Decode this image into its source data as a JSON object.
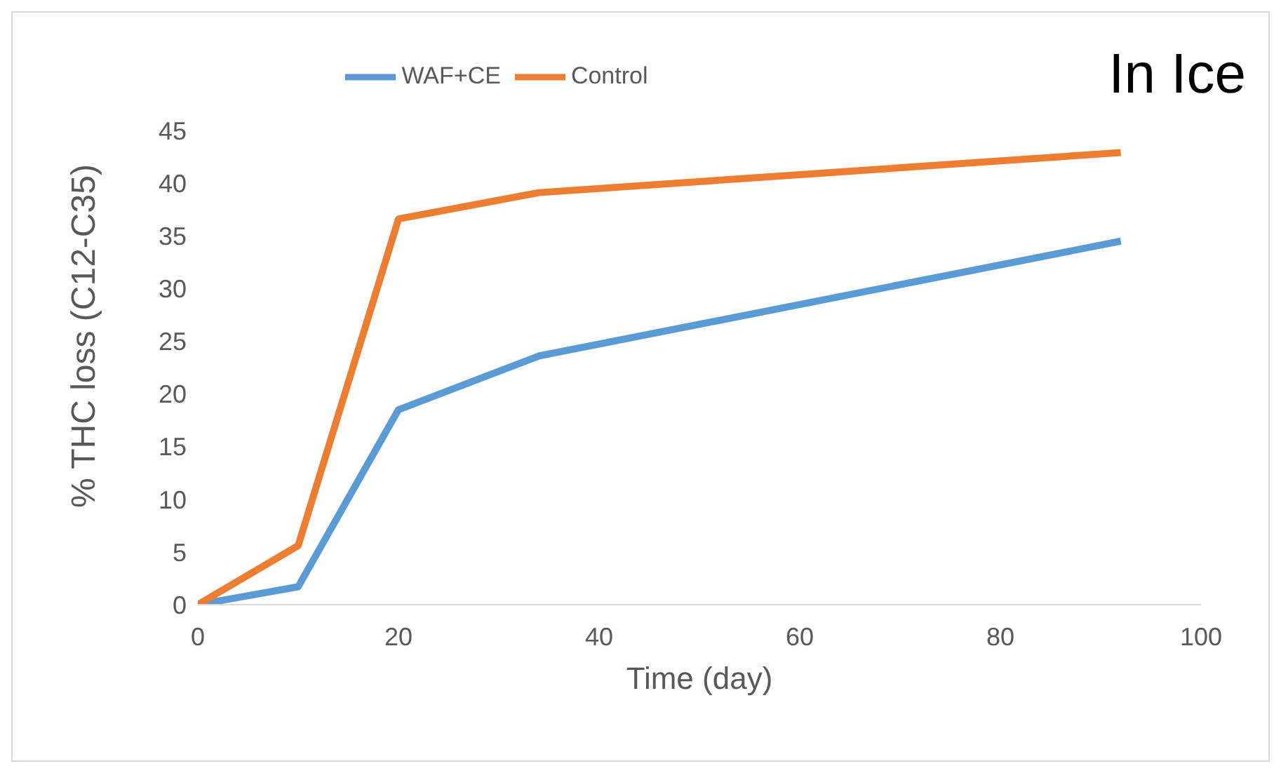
{
  "chart_data": {
    "type": "line",
    "xlabel": "Time (day)",
    "ylabel": "% THC loss (C12-C35)",
    "annotations": [
      "In Ice"
    ],
    "x": [
      0,
      10,
      20,
      34,
      92
    ],
    "series": [
      {
        "name": "WAF+CE",
        "color": "#5b9bd5",
        "values": [
          0,
          1.7,
          18.5,
          23.6,
          34.5
        ]
      },
      {
        "name": "Control",
        "color": "#ed7d31",
        "values": [
          0,
          5.6,
          36.6,
          39.1,
          42.9
        ]
      }
    ],
    "xlim": [
      0,
      100
    ],
    "xticks": [
      0,
      20,
      40,
      60,
      80,
      100
    ],
    "ylim": [
      0,
      45
    ],
    "yticks": [
      0,
      5,
      10,
      15,
      20,
      25,
      30,
      35,
      40,
      45
    ],
    "grid": false,
    "legend": "top",
    "marker": "none",
    "line_style": "solid"
  }
}
